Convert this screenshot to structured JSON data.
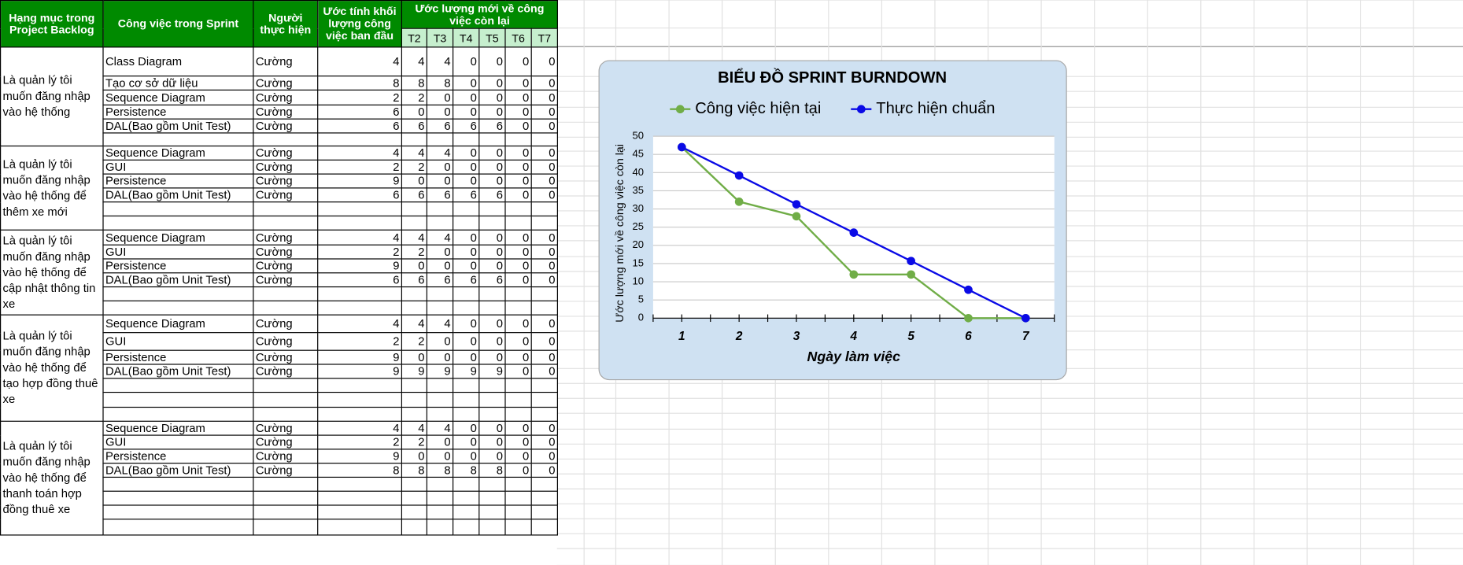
{
  "table": {
    "header": [
      "Hạng mục trong Project Backlog",
      "Công việc trong Sprint",
      "Người thực hiện",
      "Ước tính khối lượng công việc ban đầu",
      "Ước lượng mới về công việc còn lại"
    ],
    "subheader": [
      "T2",
      "T3",
      "T4",
      "T5",
      "T6",
      "T7"
    ],
    "groups": [
      {
        "label": "Là quản lý tôi muốn đăng nhập vào hệ thống",
        "rows": [
          [
            "Class Diagram",
            "Cường",
            4,
            4,
            4,
            0,
            0,
            0,
            0
          ],
          [
            "Tạo cơ sở dữ liệu",
            "Cường",
            8,
            8,
            8,
            0,
            0,
            0,
            0
          ],
          [
            "Sequence Diagram",
            "Cường",
            2,
            2,
            0,
            0,
            0,
            0,
            0
          ],
          [
            "Persistence",
            "Cường",
            6,
            0,
            0,
            0,
            0,
            0,
            0
          ],
          [
            "DAL(Bao gồm Unit Test)",
            "Cường",
            6,
            6,
            6,
            6,
            6,
            0,
            0
          ]
        ]
      },
      {
        "label": "Là quản lý tôi muốn đăng nhập vào hệ thống để thêm xe mới",
        "rows": [
          [
            "Sequence Diagram",
            "Cường",
            4,
            4,
            4,
            0,
            0,
            0,
            0
          ],
          [
            "GUI",
            "Cường",
            2,
            2,
            0,
            0,
            0,
            0,
            0
          ],
          [
            "Persistence",
            "Cường",
            9,
            0,
            0,
            0,
            0,
            0,
            0
          ],
          [
            "DAL(Bao gồm Unit Test)",
            "Cường",
            6,
            6,
            6,
            6,
            6,
            0,
            0
          ]
        ]
      },
      {
        "label": "Là quản lý tôi muốn đăng nhập vào hệ thống để cập nhật thông tin xe",
        "rows": [
          [
            "Sequence Diagram",
            "Cường",
            4,
            4,
            4,
            0,
            0,
            0,
            0
          ],
          [
            "GUI",
            "Cường",
            2,
            2,
            0,
            0,
            0,
            0,
            0
          ],
          [
            "Persistence",
            "Cường",
            9,
            0,
            0,
            0,
            0,
            0,
            0
          ],
          [
            "DAL(Bao gồm Unit Test)",
            "Cường",
            6,
            6,
            6,
            6,
            6,
            0,
            0
          ]
        ]
      },
      {
        "label": "Là quản lý tôi muốn đăng nhập vào hệ thống để tạo hợp đồng thuê xe",
        "rows": [
          [
            "Sequence Diagram",
            "Cường",
            4,
            4,
            4,
            0,
            0,
            0,
            0
          ],
          [
            "GUI",
            "Cường",
            2,
            2,
            0,
            0,
            0,
            0,
            0
          ],
          [
            "Persistence",
            "Cường",
            9,
            0,
            0,
            0,
            0,
            0,
            0
          ],
          [
            "DAL(Bao gồm Unit Test)",
            "Cường",
            9,
            9,
            9,
            9,
            9,
            0,
            0
          ]
        ]
      },
      {
        "label": "Là quản lý tôi muốn đăng nhập vào hệ thống để thanh toán hợp đồng thuê xe",
        "rows": [
          [
            "Sequence Diagram",
            "Cường",
            4,
            4,
            4,
            0,
            0,
            0,
            0
          ],
          [
            "GUI",
            "Cường",
            2,
            2,
            0,
            0,
            0,
            0,
            0
          ],
          [
            "Persistence",
            "Cường",
            9,
            0,
            0,
            0,
            0,
            0,
            0
          ],
          [
            "DAL(Bao gồm Unit Test)",
            "Cường",
            8,
            8,
            8,
            8,
            8,
            0,
            0
          ]
        ]
      }
    ]
  },
  "chart_data": {
    "type": "line",
    "title": "BIỂU ĐỒ SPRINT BURNDOWN",
    "x_label": "Ngày làm việc",
    "y_label": "Ước lượng mới về công việc còn lại",
    "categories": [
      "1",
      "2",
      "3",
      "4",
      "5",
      "6",
      "7"
    ],
    "series": [
      {
        "name": "Công việc hiện tại",
        "color": "#70ad47",
        "values": [
          47,
          32,
          28,
          12,
          12,
          0,
          0
        ]
      },
      {
        "name": "Thực hiện chuẩn",
        "color": "#0a0ae6",
        "values": [
          47,
          39.2,
          31.3,
          23.5,
          15.7,
          7.8,
          0
        ]
      }
    ],
    "ylim": [
      0,
      50
    ],
    "yticks": [
      0,
      5,
      10,
      15,
      20,
      25,
      30,
      35,
      40,
      45,
      50
    ],
    "grid": true,
    "legend": "top"
  }
}
